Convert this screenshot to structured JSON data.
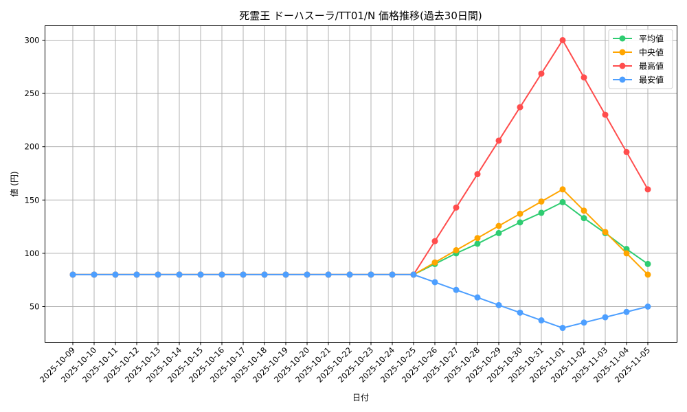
{
  "chart_data": {
    "type": "line",
    "title": "死霊王 ドーハスーラ/TT01/N 価格推移(過去30日間)",
    "xlabel": "日付",
    "ylabel": "値 (円)",
    "ylim": [
      16.5,
      313.5
    ],
    "yticks": [
      50,
      100,
      150,
      200,
      250,
      300
    ],
    "grid": true,
    "legend_position": "upper right",
    "categories": [
      "2025-10-09",
      "2025-10-10",
      "2025-10-11",
      "2025-10-12",
      "2025-10-13",
      "2025-10-14",
      "2025-10-15",
      "2025-10-16",
      "2025-10-17",
      "2025-10-18",
      "2025-10-19",
      "2025-10-20",
      "2025-10-21",
      "2025-10-22",
      "2025-10-23",
      "2025-10-24",
      "2025-10-25",
      "2025-10-26",
      "2025-10-27",
      "2025-10-28",
      "2025-10-29",
      "2025-10-30",
      "2025-10-31",
      "2025-11-01",
      "2025-11-02",
      "2025-11-03",
      "2025-11-04",
      "2025-11-05"
    ],
    "series": [
      {
        "name": "平均値",
        "color": "#2ecc71",
        "values": [
          80,
          80,
          80,
          80,
          80,
          80,
          80,
          80,
          80,
          80,
          80,
          80,
          80,
          80,
          80,
          80,
          80,
          90,
          100,
          109,
          119,
          129,
          138,
          148,
          133,
          119,
          104,
          90
        ]
      },
      {
        "name": "中央値",
        "color": "#ffa500",
        "values": [
          80,
          80,
          80,
          80,
          80,
          80,
          80,
          80,
          80,
          80,
          80,
          80,
          80,
          80,
          80,
          80,
          80,
          91.4,
          102.9,
          114.3,
          125.7,
          137.1,
          148.6,
          160,
          140,
          120,
          100,
          80
        ]
      },
      {
        "name": "最高値",
        "color": "#ff4d4d",
        "values": [
          80,
          80,
          80,
          80,
          80,
          80,
          80,
          80,
          80,
          80,
          80,
          80,
          80,
          80,
          80,
          80,
          80,
          111.4,
          142.9,
          174.3,
          205.7,
          237.1,
          268.6,
          300,
          265,
          230,
          195,
          160
        ]
      },
      {
        "name": "最安値",
        "color": "#4d9fff",
        "values": [
          80,
          80,
          80,
          80,
          80,
          80,
          80,
          80,
          80,
          80,
          80,
          80,
          80,
          80,
          80,
          80,
          80,
          72.9,
          65.7,
          58.6,
          51.4,
          44.3,
          37.1,
          30,
          35,
          40,
          45,
          50
        ]
      }
    ]
  }
}
